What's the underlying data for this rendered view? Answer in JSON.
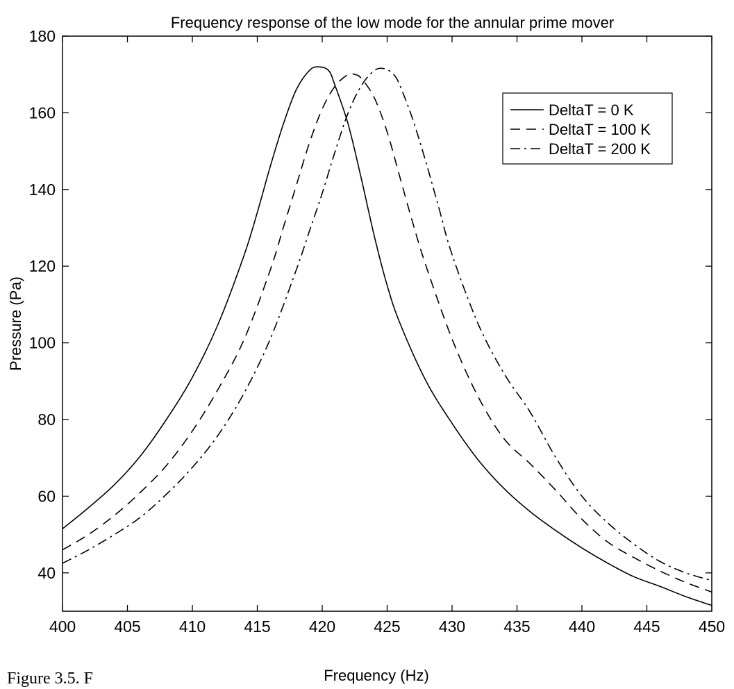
{
  "chart_data": {
    "type": "line",
    "title": "Frequency response of the low mode for the annular prime mover",
    "xlabel": "Frequency (Hz)",
    "ylabel": "Pressure (Pa)",
    "xlim": [
      400,
      450
    ],
    "ylim": [
      30,
      180
    ],
    "xticks": [
      400,
      405,
      410,
      415,
      420,
      425,
      430,
      435,
      440,
      445,
      450
    ],
    "yticks": [
      40,
      60,
      80,
      100,
      120,
      140,
      160,
      180
    ],
    "grid": false,
    "legend_position": "top-right",
    "series": [
      {
        "name": "DeltaT = 0 K",
        "style": "solid",
        "x": [
          400,
          402,
          404,
          406,
          408,
          410,
          412,
          414,
          415,
          416,
          417,
          418,
          419,
          419.7,
          420.5,
          421,
          422,
          423,
          424,
          425,
          426,
          428,
          430,
          432,
          434,
          436,
          438,
          440,
          442,
          444,
          446,
          448,
          450
        ],
        "y": [
          51.5,
          57,
          63,
          70.5,
          80,
          91,
          105,
          123,
          134,
          146,
          157,
          166,
          171,
          172,
          171,
          167,
          157,
          143,
          128,
          115,
          105,
          90,
          79,
          69.5,
          62,
          56,
          51,
          46.5,
          42.5,
          39,
          36.5,
          33.8,
          31.5
        ]
      },
      {
        "name": "DeltaT = 100 K",
        "style": "dashed",
        "x": [
          400,
          402,
          404,
          406,
          408,
          410,
          412,
          414,
          416,
          417,
          418,
          419,
          420,
          421,
          422,
          422.5,
          423,
          424,
          425,
          426,
          427,
          428,
          430,
          432,
          434,
          436,
          438,
          440,
          442,
          444,
          446,
          448,
          450
        ],
        "y": [
          46,
          50,
          55,
          61,
          68,
          77,
          88,
          101,
          119,
          130,
          141,
          152,
          161,
          167,
          170,
          170,
          169,
          164,
          155,
          143,
          131,
          120,
          101,
          86,
          75,
          68.5,
          61.5,
          54,
          48,
          44,
          40.5,
          37.5,
          35
        ]
      },
      {
        "name": "DeltaT = 200 K",
        "style": "dashdot",
        "x": [
          400,
          402,
          404,
          406,
          408,
          410,
          412,
          414,
          416,
          418,
          419,
          420,
          421,
          422,
          423,
          424,
          424.8,
          425.5,
          426,
          427,
          428,
          429,
          430,
          432,
          434,
          436,
          438,
          440,
          442,
          444,
          446,
          448,
          450
        ],
        "y": [
          42.5,
          46,
          50,
          54.5,
          60.5,
          67.5,
          76,
          87,
          101,
          119,
          129,
          139,
          150,
          160,
          167,
          171,
          171.5,
          170,
          167,
          158,
          147,
          135,
          123,
          105,
          92,
          82,
          70,
          60,
          53,
          47.5,
          43,
          40,
          38
        ]
      }
    ]
  },
  "caption": "Figure 3.5.  F"
}
